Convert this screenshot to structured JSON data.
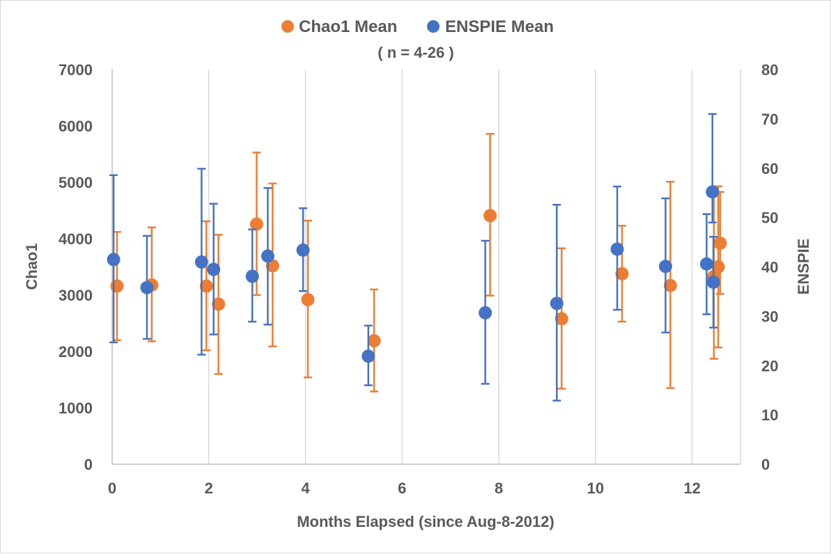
{
  "chart_data": {
    "type": "scatter",
    "subtitle": "( n = 4-26 )",
    "xlabel": "Months Elapsed (since Aug-8-2012)",
    "ylabel": "Chao1",
    "y2label": "ENSPIE",
    "xlim": [
      0,
      13
    ],
    "ylim": [
      0,
      7000
    ],
    "y2lim": [
      0,
      80
    ],
    "xticks": [
      "0",
      "2",
      "4",
      "6",
      "8",
      "10",
      "12"
    ],
    "yticks": [
      "0",
      "1000",
      "2000",
      "3000",
      "4000",
      "5000",
      "6000",
      "7000"
    ],
    "y2ticks": [
      "0",
      "10",
      "20",
      "30",
      "40",
      "50",
      "60",
      "70",
      "80"
    ],
    "grid": "vertical",
    "legend": "top-center",
    "series": [
      {
        "name": "Chao1 Mean",
        "axis": "left",
        "color": "#ED7D31",
        "points": [
          {
            "x": 0.1,
            "y": 3160,
            "low": 2200,
            "high": 4120
          },
          {
            "x": 0.82,
            "y": 3180,
            "low": 2180,
            "high": 4200
          },
          {
            "x": 1.95,
            "y": 3160,
            "low": 2020,
            "high": 4310
          },
          {
            "x": 2.2,
            "y": 2840,
            "low": 1600,
            "high": 4070
          },
          {
            "x": 2.99,
            "y": 4260,
            "low": 3000,
            "high": 5530
          },
          {
            "x": 3.32,
            "y": 3520,
            "low": 2090,
            "high": 4980
          },
          {
            "x": 4.05,
            "y": 2920,
            "low": 1540,
            "high": 4320
          },
          {
            "x": 5.42,
            "y": 2190,
            "low": 1290,
            "high": 3100
          },
          {
            "x": 7.82,
            "y": 4410,
            "low": 2990,
            "high": 5860
          },
          {
            "x": 9.3,
            "y": 2580,
            "low": 1340,
            "high": 3830
          },
          {
            "x": 10.55,
            "y": 3380,
            "low": 2530,
            "high": 4230
          },
          {
            "x": 11.55,
            "y": 3170,
            "low": 1350,
            "high": 5010
          },
          {
            "x": 12.45,
            "y": 3330,
            "low": 1870,
            "high": 4920
          },
          {
            "x": 12.54,
            "y": 3500,
            "low": 2070,
            "high": 4930
          },
          {
            "x": 12.58,
            "y": 3920,
            "low": 3020,
            "high": 4830
          }
        ]
      },
      {
        "name": "ENSPIE Mean",
        "axis": "right",
        "color": "#4472C4",
        "points": [
          {
            "x": 0.03,
            "y": 41.5,
            "low": 24.7,
            "high": 58.6
          },
          {
            "x": 0.72,
            "y": 35.8,
            "low": 25.4,
            "high": 46.3
          },
          {
            "x": 1.85,
            "y": 41.0,
            "low": 22.2,
            "high": 59.9
          },
          {
            "x": 2.1,
            "y": 39.5,
            "low": 26.3,
            "high": 52.8
          },
          {
            "x": 2.9,
            "y": 38.1,
            "low": 28.9,
            "high": 47.6
          },
          {
            "x": 3.22,
            "y": 42.2,
            "low": 28.3,
            "high": 56.0
          },
          {
            "x": 3.95,
            "y": 43.4,
            "low": 35.1,
            "high": 51.9
          },
          {
            "x": 5.3,
            "y": 21.9,
            "low": 16.0,
            "high": 28.1
          },
          {
            "x": 7.72,
            "y": 30.7,
            "low": 16.3,
            "high": 45.3
          },
          {
            "x": 9.2,
            "y": 32.6,
            "low": 12.9,
            "high": 52.6
          },
          {
            "x": 10.45,
            "y": 43.6,
            "low": 31.3,
            "high": 56.3
          },
          {
            "x": 11.45,
            "y": 40.1,
            "low": 26.7,
            "high": 53.9
          },
          {
            "x": 12.3,
            "y": 40.6,
            "low": 30.4,
            "high": 50.7
          },
          {
            "x": 12.42,
            "y": 55.2,
            "low": 49.0,
            "high": 71.0
          },
          {
            "x": 12.44,
            "y": 36.9,
            "low": 27.7,
            "high": 46.1
          }
        ]
      }
    ]
  }
}
